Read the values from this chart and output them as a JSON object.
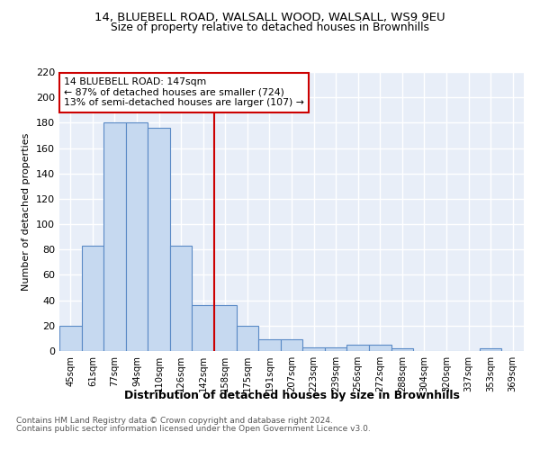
{
  "title1": "14, BLUEBELL ROAD, WALSALL WOOD, WALSALL, WS9 9EU",
  "title2": "Size of property relative to detached houses in Brownhills",
  "xlabel": "Distribution of detached houses by size in Brownhills",
  "ylabel": "Number of detached properties",
  "bar_labels": [
    "45sqm",
    "61sqm",
    "77sqm",
    "94sqm",
    "110sqm",
    "126sqm",
    "142sqm",
    "158sqm",
    "175sqm",
    "191sqm",
    "207sqm",
    "223sqm",
    "239sqm",
    "256sqm",
    "272sqm",
    "288sqm",
    "304sqm",
    "320sqm",
    "337sqm",
    "353sqm",
    "369sqm"
  ],
  "bar_values": [
    20,
    83,
    180,
    180,
    176,
    83,
    36,
    36,
    20,
    9,
    9,
    3,
    3,
    5,
    5,
    2,
    0,
    0,
    0,
    2,
    0
  ],
  "bar_color": "#c6d9f0",
  "bar_edge_color": "#5a8ac6",
  "vline_x": 6.5,
  "vline_color": "#cc0000",
  "annotation_line1": "14 BLUEBELL ROAD: 147sqm",
  "annotation_line2": "← 87% of detached houses are smaller (724)",
  "annotation_line3": "13% of semi-detached houses are larger (107) →",
  "annotation_box_color": "#ffffff",
  "annotation_box_edge": "#cc0000",
  "ylim": [
    0,
    220
  ],
  "yticks": [
    0,
    20,
    40,
    60,
    80,
    100,
    120,
    140,
    160,
    180,
    200,
    220
  ],
  "bg_color": "#e8eef8",
  "grid_color": "#ffffff",
  "footer1": "Contains HM Land Registry data © Crown copyright and database right 2024.",
  "footer2": "Contains public sector information licensed under the Open Government Licence v3.0."
}
